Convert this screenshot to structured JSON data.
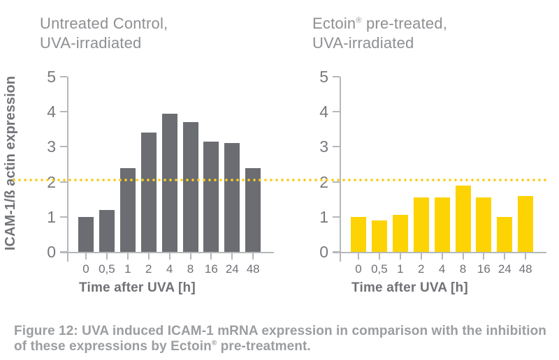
{
  "figure": {
    "caption": "Figure 12: UVA induced ICAM-1 mRNA expression in comparison with the inhibition\nof these expressions by Ectoin® pre-treatment."
  },
  "colors": {
    "control_bar": "#6b6d72",
    "ectoin_bar": "#fdd303",
    "threshold_dots": "#f7ce1e",
    "axis_line": "#b5b7b9",
    "tick_text": "#77797d",
    "title_text": "#8d8f92",
    "caption_text": "#9b9da0"
  },
  "chart_data": [
    {
      "type": "bar",
      "title": "Untreated Control,\nUVA-irradiated",
      "categories": [
        "0",
        "0,5",
        "1",
        "2",
        "4",
        "8",
        "16",
        "24",
        "48"
      ],
      "values": [
        1.0,
        1.2,
        2.4,
        3.4,
        3.95,
        3.7,
        3.15,
        3.1,
        2.4
      ],
      "xlabel": "Time after UVA [h]",
      "ylabel": "ICAM-1/ß actin expression",
      "ylim": [
        0,
        5
      ],
      "yticks": [
        0,
        1,
        2,
        3,
        4,
        5
      ],
      "threshold_line": 2.05,
      "bar_color": "#6b6d72",
      "grid": false,
      "legend": "none"
    },
    {
      "type": "bar",
      "title": "Ectoin® pre-treated,\nUVA-irradiated",
      "categories": [
        "0",
        "0,5",
        "1",
        "2",
        "4",
        "8",
        "16",
        "24",
        "48"
      ],
      "values": [
        1.0,
        0.9,
        1.05,
        1.55,
        1.55,
        1.9,
        1.55,
        1.0,
        1.6
      ],
      "xlabel": "Time after UVA [h]",
      "ylabel": "",
      "ylim": [
        0,
        5
      ],
      "yticks": [
        0,
        1,
        2,
        3,
        4,
        5
      ],
      "threshold_line": 2.05,
      "bar_color": "#fdd303",
      "grid": false,
      "legend": "none"
    }
  ]
}
